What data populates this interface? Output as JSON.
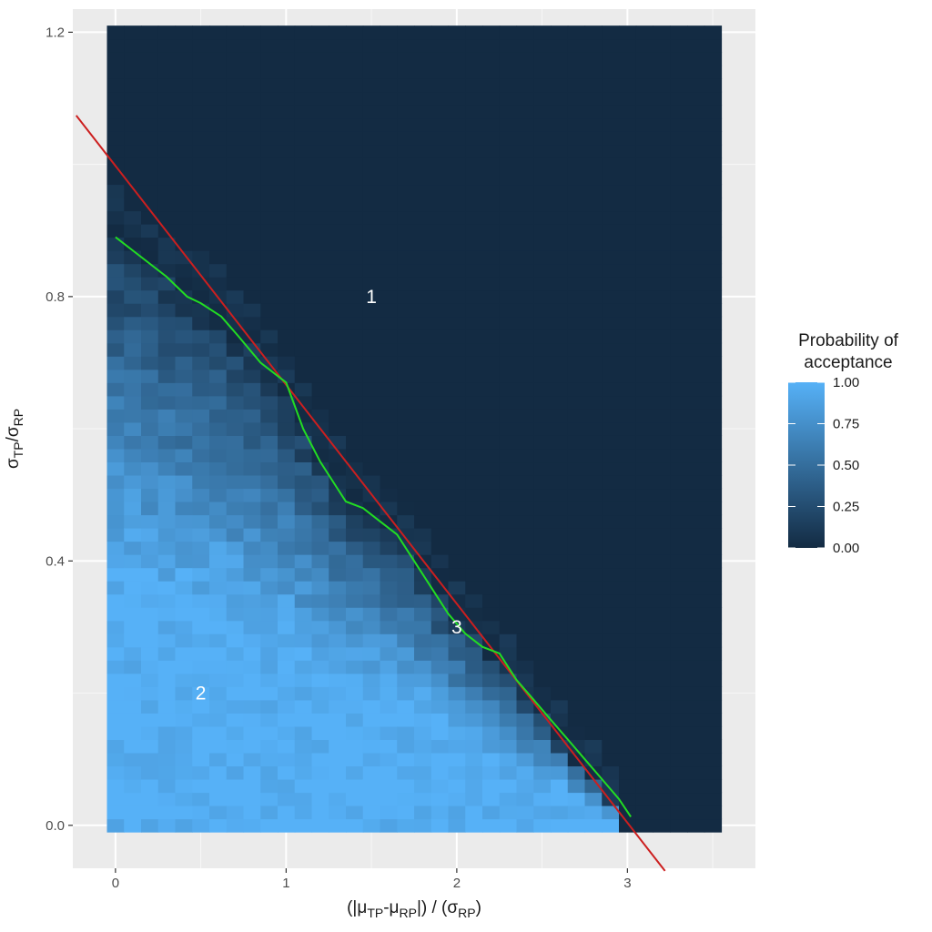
{
  "chart_data": {
    "type": "heatmap",
    "title": "",
    "xlabel_parts": [
      "(|μ",
      "TP",
      "-μ",
      "RP",
      "|) / (σ",
      "RP",
      ")"
    ],
    "ylabel_parts": [
      "σ",
      "TP",
      "/σ",
      "RP"
    ],
    "xlim": [
      -0.25,
      3.75
    ],
    "ylim": [
      -0.065,
      1.235
    ],
    "x_ticks": [
      0,
      1,
      2,
      3
    ],
    "x_tick_labels": [
      "0",
      "1",
      "2",
      "3"
    ],
    "y_ticks": [
      0.0,
      0.4,
      0.8,
      1.2
    ],
    "y_tick_labels": [
      "0.0",
      "0.4",
      "0.8",
      "1.2"
    ],
    "grid": true,
    "heatmap": {
      "x_range": [
        -0.05,
        3.55
      ],
      "y_range": [
        -0.01,
        1.21
      ],
      "nx": 36,
      "ny": 61,
      "value_range": [
        0,
        1
      ]
    },
    "colorbar": {
      "title_lines": [
        "Probability of",
        "acceptance"
      ],
      "ticks": [
        1.0,
        0.75,
        0.5,
        0.25,
        0.0
      ],
      "labels": [
        "1.00",
        "0.75",
        "0.50",
        "0.25",
        "0.00"
      ],
      "low_color": "#132b43",
      "high_color": "#56b1f7",
      "placement": "right"
    },
    "series": [
      {
        "type": "line",
        "color": "#cc1f1f",
        "x": [
          -0.23,
          3.22
        ],
        "y": [
          1.074,
          -0.069
        ]
      },
      {
        "type": "line",
        "color": "#22dd22",
        "x": [
          0.0,
          0.1,
          0.3,
          0.42,
          0.5,
          0.62,
          0.72,
          0.85,
          1.0,
          1.1,
          1.2,
          1.3,
          1.35,
          1.45,
          1.55,
          1.65,
          1.75,
          1.85,
          1.95,
          2.05,
          2.15,
          2.25,
          2.35,
          2.45,
          2.55,
          2.65,
          2.75,
          2.85,
          2.95,
          3.02
        ],
        "y": [
          0.89,
          0.87,
          0.83,
          0.8,
          0.79,
          0.77,
          0.74,
          0.7,
          0.67,
          0.6,
          0.55,
          0.51,
          0.49,
          0.48,
          0.46,
          0.44,
          0.4,
          0.36,
          0.32,
          0.29,
          0.27,
          0.26,
          0.22,
          0.19,
          0.16,
          0.13,
          0.1,
          0.07,
          0.04,
          0.013
        ]
      }
    ],
    "annotations": [
      {
        "text": "1",
        "x": 1.5,
        "y": 0.8
      },
      {
        "text": "2",
        "x": 0.5,
        "y": 0.2
      },
      {
        "text": "3",
        "x": 2.0,
        "y": 0.3
      }
    ]
  }
}
